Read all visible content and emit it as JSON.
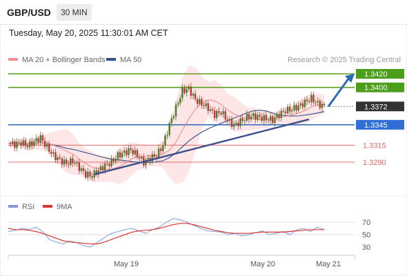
{
  "header": {
    "pair": "GBP/USD",
    "timeframe": "30 MIN",
    "timestamp": "Tuesday, May 20, 2025 11:30:01 AM CET"
  },
  "colors": {
    "ma20": "#f28c8c",
    "ma50": "#2f4f8f",
    "bands_fill": "#fde0df",
    "resistance": "#5a9e1e",
    "support": "#3a6fbf",
    "level_red": "#e06666",
    "current_box": "#333333",
    "support_box": "#2f6fd6",
    "resistance_box": "#4a9e1a",
    "arrow": "#2b6cb0",
    "trendline": "#3b4f8f",
    "rsi": "#7f9cd9",
    "rsi_ma": "#dd3333",
    "candle_up": "#4a7a2e",
    "candle_down": "#b33a3a"
  },
  "chart_data": [
    {
      "type": "candlestick",
      "title": "",
      "legend": [
        {
          "name": "MA 20 + Bollinger Bands",
          "color": "#f28c8c"
        },
        {
          "name": "MA 50",
          "color": "#2f4f8f"
        }
      ],
      "credit": "Research © 2025 Trading Central",
      "x_labels": [
        "May 19",
        "May 20",
        "May 21"
      ],
      "levels": [
        {
          "value": "1.3420",
          "color": "#5a9e1e",
          "boxed": true,
          "box_color": "#4a9e1a"
        },
        {
          "value": "1.3400",
          "color": "#5a9e1e",
          "boxed": true,
          "box_color": "#4a9e1a"
        },
        {
          "value": "1.3372",
          "color": "#aaaaaa",
          "boxed": true,
          "box_color": "#333333",
          "dotted": true
        },
        {
          "value": "1.3345",
          "color": "#3a6fbf",
          "boxed": true,
          "box_color": "#2f6fd6"
        },
        {
          "value": "1.3315",
          "color": "#e06666",
          "boxed": false
        },
        {
          "value": "1.3290",
          "color": "#e06666",
          "boxed": false
        }
      ],
      "close_path": [
        1.3318,
        1.3316,
        1.3319,
        1.3314,
        1.332,
        1.3326,
        1.3312,
        1.33,
        1.3293,
        1.3288,
        1.3292,
        1.3282,
        1.3272,
        1.327,
        1.3278,
        1.3285,
        1.329,
        1.33,
        1.3304,
        1.3308,
        1.33,
        1.329,
        1.3296,
        1.33,
        1.3315,
        1.3345,
        1.337,
        1.3395,
        1.3398,
        1.3382,
        1.3376,
        1.337,
        1.336,
        1.3364,
        1.3352,
        1.3344,
        1.335,
        1.3356,
        1.3358,
        1.3356,
        1.3354,
        1.3352,
        1.336,
        1.3366,
        1.3368,
        1.3372,
        1.3378,
        1.3384,
        1.3376,
        1.3372
      ]
    },
    {
      "type": "line",
      "title": "",
      "legend": [
        {
          "name": "RSI",
          "color": "#7f9cd9"
        },
        {
          "name": "9MA",
          "color": "#dd3333"
        }
      ],
      "y_ticks": [
        "70",
        "50",
        "30"
      ],
      "ylim": [
        20,
        80
      ],
      "rsi": [
        55,
        57,
        60,
        58,
        62,
        55,
        42,
        38,
        35,
        40,
        37,
        32,
        30,
        38,
        45,
        52,
        55,
        58,
        60,
        56,
        52,
        58,
        62,
        70,
        76,
        74,
        70,
        65,
        60,
        56,
        55,
        54,
        50,
        52,
        48,
        50,
        53,
        56,
        50,
        52,
        55,
        50,
        58,
        60,
        55,
        62,
        58
      ],
      "rsi_ma": [
        60,
        58,
        58,
        57,
        55,
        52,
        48,
        44,
        40,
        38,
        37,
        36,
        35,
        35,
        38,
        42,
        46,
        50,
        54,
        56,
        57,
        58,
        60,
        63,
        66,
        68,
        68,
        66,
        63,
        60,
        57,
        55,
        53,
        52,
        52,
        52,
        53,
        54,
        54,
        54,
        54,
        55,
        56,
        57,
        58,
        58,
        58
      ]
    }
  ]
}
